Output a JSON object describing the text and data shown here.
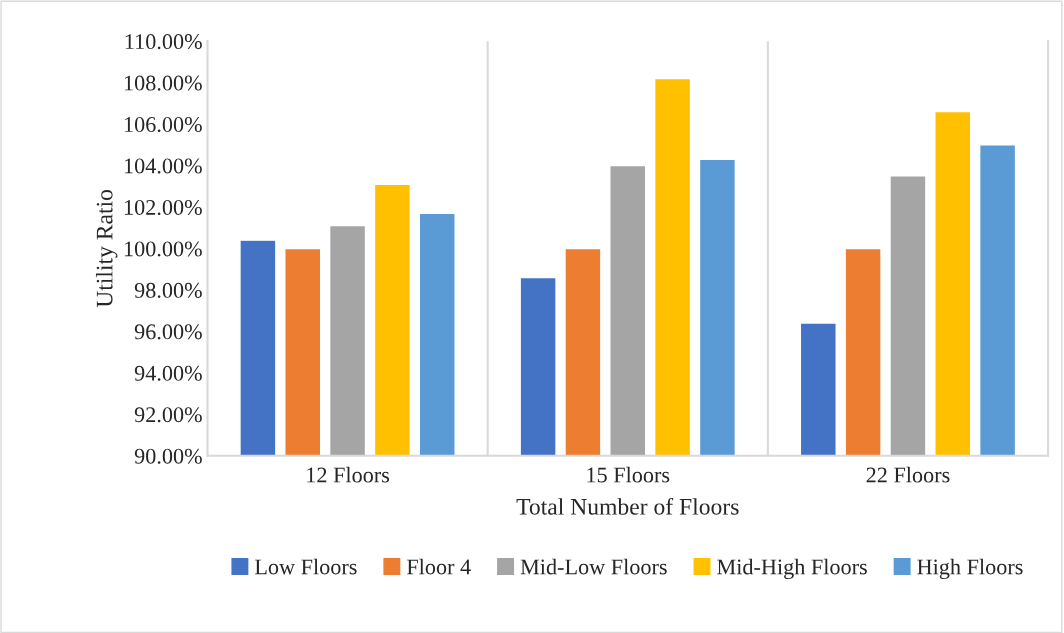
{
  "chart_data": {
    "type": "bar",
    "xlabel": "Total Number of Floors",
    "ylabel": "Utility Ratio",
    "categories": [
      "12 Floors",
      "15 Floors",
      "22 Floors"
    ],
    "series": [
      {
        "name": "Low Floors",
        "color": "#4472c4",
        "values": [
          100.4,
          98.6,
          96.4
        ]
      },
      {
        "name": "Floor 4",
        "color": "#ed7d31",
        "values": [
          100.0,
          100.0,
          100.0
        ]
      },
      {
        "name": "Mid-Low Floors",
        "color": "#a5a5a5",
        "values": [
          101.1,
          104.0,
          103.5
        ]
      },
      {
        "name": "Mid-High Floors",
        "color": "#ffc000",
        "values": [
          103.1,
          108.2,
          106.6
        ]
      },
      {
        "name": "High Floors",
        "color": "#5b9bd5",
        "values": [
          101.7,
          104.3,
          105.0
        ]
      }
    ],
    "ylim": [
      90,
      110
    ],
    "yticks": [
      {
        "value": 90,
        "label": "90.00%"
      },
      {
        "value": 92,
        "label": "92.00%"
      },
      {
        "value": 94,
        "label": "94.00%"
      },
      {
        "value": 96,
        "label": "96.00%"
      },
      {
        "value": 98,
        "label": "98.00%"
      },
      {
        "value": 100,
        "label": "100.00%"
      },
      {
        "value": 102,
        "label": "102.00%"
      },
      {
        "value": 104,
        "label": "104.00%"
      },
      {
        "value": 106,
        "label": "106.00%"
      },
      {
        "value": 108,
        "label": "108.00%"
      },
      {
        "value": 110,
        "label": "110.00%"
      }
    ],
    "grid": "x",
    "legend": "bottom"
  }
}
